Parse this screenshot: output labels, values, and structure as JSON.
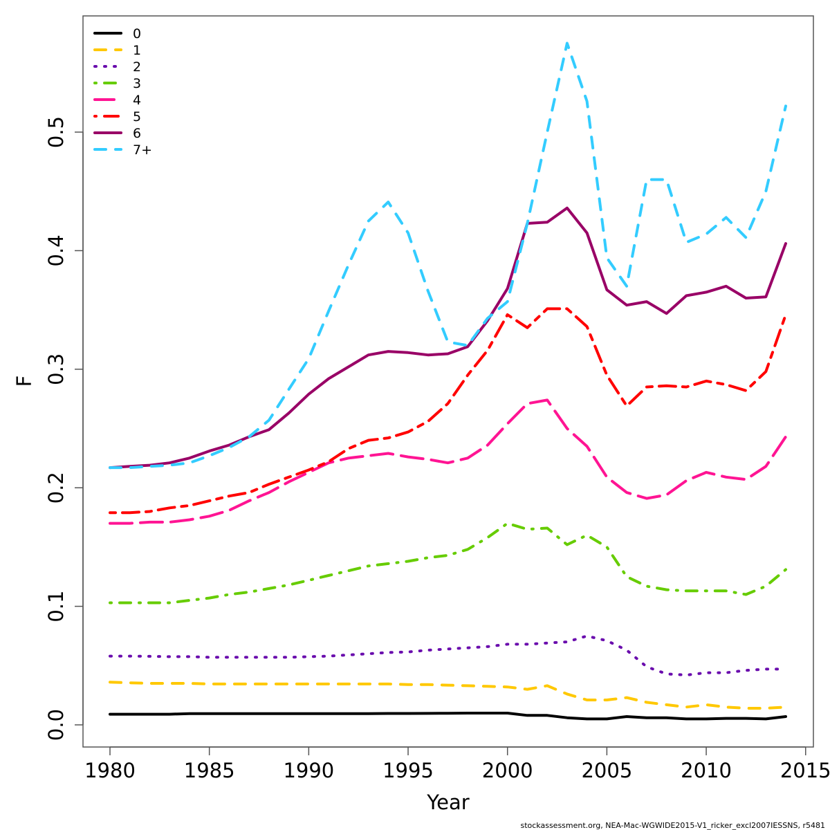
{
  "chart_data": {
    "type": "line",
    "title": "",
    "xlabel": "Year",
    "ylabel": "F",
    "xlim": [
      1978.7,
      2015.4
    ],
    "ylim": [
      -0.019,
      0.598
    ],
    "x_ticks": [
      1980,
      1985,
      1990,
      1995,
      2000,
      2005,
      2010,
      2015
    ],
    "x_tick_labels": [
      "1980",
      "1985",
      "1990",
      "1995",
      "2000",
      "2005",
      "2010",
      "2015"
    ],
    "y_ticks": [
      0.0,
      0.1,
      0.2,
      0.3,
      0.4,
      0.5
    ],
    "y_tick_labels": [
      "0.0",
      "0.1",
      "0.2",
      "0.3",
      "0.4",
      "0.5"
    ],
    "grid": false,
    "legend_position": "top-left",
    "x": [
      1980,
      1981,
      1982,
      1983,
      1984,
      1985,
      1986,
      1987,
      1988,
      1989,
      1990,
      1991,
      1992,
      1993,
      1994,
      1995,
      1996,
      1997,
      1998,
      1999,
      2000,
      2001,
      2002,
      2003,
      2004,
      2005,
      2006,
      2007,
      2008,
      2009,
      2010,
      2011,
      2012,
      2013,
      2014
    ],
    "series": [
      {
        "name": "0",
        "color": "#000000",
        "dash": "solid",
        "values": [
          0.009,
          0.009,
          0.009,
          0.009,
          0.0095,
          0.0095,
          0.0095,
          0.0095,
          0.0095,
          0.0095,
          0.0095,
          0.0095,
          0.0095,
          0.0095,
          0.0096,
          0.0096,
          0.0097,
          0.0098,
          0.0099,
          0.0099,
          0.0099,
          0.008,
          0.008,
          0.006,
          0.005,
          0.005,
          0.007,
          0.006,
          0.006,
          0.005,
          0.005,
          0.0055,
          0.0055,
          0.005,
          0.007
        ]
      },
      {
        "name": "1",
        "color": "#FFC800",
        "dash": "dashed",
        "values": [
          0.036,
          0.0355,
          0.035,
          0.035,
          0.035,
          0.0345,
          0.0345,
          0.0345,
          0.0345,
          0.0345,
          0.0345,
          0.0345,
          0.0345,
          0.0345,
          0.0345,
          0.034,
          0.034,
          0.0335,
          0.033,
          0.0325,
          0.032,
          0.03,
          0.033,
          0.026,
          0.021,
          0.021,
          0.023,
          0.019,
          0.017,
          0.015,
          0.017,
          0.015,
          0.014,
          0.014,
          0.015
        ]
      },
      {
        "name": "2",
        "color": "#6A0DAD",
        "dash": "dotted",
        "values": [
          0.058,
          0.058,
          0.0578,
          0.0575,
          0.0575,
          0.057,
          0.057,
          0.057,
          0.057,
          0.057,
          0.0575,
          0.058,
          0.059,
          0.06,
          0.061,
          0.0615,
          0.063,
          0.064,
          0.065,
          0.066,
          0.068,
          0.068,
          0.069,
          0.07,
          0.075,
          0.071,
          0.063,
          0.049,
          0.043,
          0.042,
          0.044,
          0.044,
          0.046,
          0.047,
          0.047
        ]
      },
      {
        "name": "3",
        "color": "#66CC00",
        "dash": "dotdash",
        "values": [
          0.103,
          0.103,
          0.103,
          0.103,
          0.105,
          0.107,
          0.11,
          0.112,
          0.115,
          0.118,
          0.122,
          0.126,
          0.13,
          0.134,
          0.136,
          0.138,
          0.141,
          0.143,
          0.148,
          0.158,
          0.17,
          0.165,
          0.166,
          0.152,
          0.16,
          0.15,
          0.125,
          0.117,
          0.114,
          0.113,
          0.113,
          0.113,
          0.11,
          0.117,
          0.131
        ]
      },
      {
        "name": "4",
        "color": "#FF1493",
        "dash": "longdash",
        "values": [
          0.17,
          0.17,
          0.171,
          0.171,
          0.173,
          0.176,
          0.181,
          0.189,
          0.196,
          0.205,
          0.213,
          0.221,
          0.225,
          0.227,
          0.229,
          0.226,
          0.224,
          0.221,
          0.225,
          0.236,
          0.254,
          0.271,
          0.274,
          0.25,
          0.235,
          0.209,
          0.196,
          0.191,
          0.194,
          0.206,
          0.213,
          0.209,
          0.207,
          0.218,
          0.243
        ]
      },
      {
        "name": "5",
        "color": "#FF0000",
        "dash": "twodash",
        "values": [
          0.179,
          0.179,
          0.18,
          0.183,
          0.185,
          0.189,
          0.193,
          0.196,
          0.203,
          0.209,
          0.215,
          0.222,
          0.233,
          0.24,
          0.242,
          0.247,
          0.256,
          0.271,
          0.295,
          0.316,
          0.346,
          0.335,
          0.351,
          0.351,
          0.336,
          0.295,
          0.269,
          0.285,
          0.286,
          0.285,
          0.29,
          0.287,
          0.282,
          0.298,
          0.346
        ]
      },
      {
        "name": "6",
        "color": "#990066",
        "dash": "solid",
        "values": [
          0.217,
          0.218,
          0.219,
          0.221,
          0.225,
          0.231,
          0.236,
          0.243,
          0.249,
          0.263,
          0.279,
          0.292,
          0.302,
          0.312,
          0.315,
          0.314,
          0.312,
          0.313,
          0.319,
          0.341,
          0.368,
          0.423,
          0.424,
          0.436,
          0.415,
          0.367,
          0.354,
          0.357,
          0.347,
          0.362,
          0.365,
          0.37,
          0.36,
          0.361,
          0.406
        ]
      },
      {
        "name": "7+",
        "color": "#33CCFF",
        "dash": "dashed",
        "values": [
          0.217,
          0.217,
          0.218,
          0.219,
          0.221,
          0.227,
          0.234,
          0.243,
          0.257,
          0.283,
          0.309,
          0.349,
          0.388,
          0.425,
          0.441,
          0.415,
          0.366,
          0.323,
          0.32,
          0.343,
          0.357,
          0.423,
          0.5,
          0.575,
          0.526,
          0.394,
          0.37,
          0.46,
          0.46,
          0.407,
          0.414,
          0.428,
          0.411,
          0.45,
          0.522
        ]
      }
    ]
  },
  "footer": "stockassessment.org, NEA-Mac-WGWIDE2015-V1_ricker_excl2007IESSNS, r5481"
}
